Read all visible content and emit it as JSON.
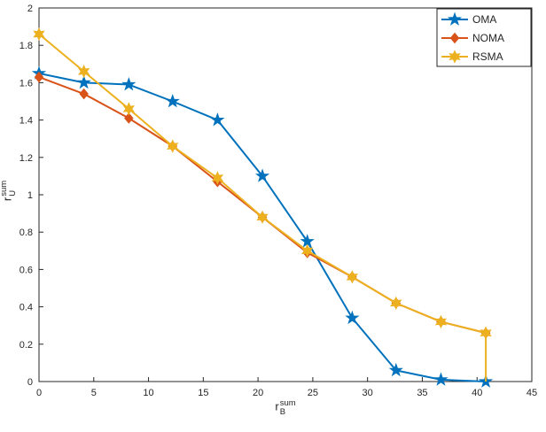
{
  "style": {
    "axis_color": "#262626",
    "background": "#ffffff"
  },
  "chart_data": {
    "type": "line",
    "x": [
      0,
      4.1,
      8.2,
      12.2,
      16.3,
      20.4,
      24.5,
      28.6,
      32.6,
      36.7,
      40.8
    ],
    "series": [
      {
        "name": "OMA",
        "color": "#0072BD",
        "marker": "pentagram",
        "values": [
          1.65,
          1.6,
          1.59,
          1.5,
          1.4,
          1.1,
          0.75,
          0.34,
          0.06,
          0.01,
          0.0
        ]
      },
      {
        "name": "NOMA",
        "color": "#D95319",
        "marker": "diamond",
        "values": [
          1.63,
          1.54,
          1.41,
          1.26,
          1.07,
          0.88,
          0.69,
          0.56,
          0.42,
          0.32,
          0.26
        ]
      },
      {
        "name": "RSMA",
        "color": "#EDB120",
        "marker": "hexagram",
        "values": [
          1.86,
          1.66,
          1.46,
          1.26,
          1.09,
          0.88,
          0.7,
          0.56,
          0.42,
          0.32,
          0.26
        ],
        "drop_to_zero_at_end": true
      }
    ],
    "xlabel": {
      "base": "r",
      "sub": "B",
      "sup": "sum"
    },
    "ylabel": {
      "base": "r",
      "sub": "U",
      "sup": "sum"
    },
    "xlim": [
      0,
      45
    ],
    "ylim": [
      0,
      2
    ],
    "xticks": [
      0,
      5,
      10,
      15,
      20,
      25,
      30,
      35,
      40,
      45
    ],
    "yticks": [
      0,
      0.2,
      0.4,
      0.6,
      0.8,
      1,
      1.2,
      1.4,
      1.6,
      1.8,
      2
    ],
    "grid": false,
    "legend_position": "top-right",
    "legend": [
      "OMA",
      "NOMA",
      "RSMA"
    ]
  }
}
